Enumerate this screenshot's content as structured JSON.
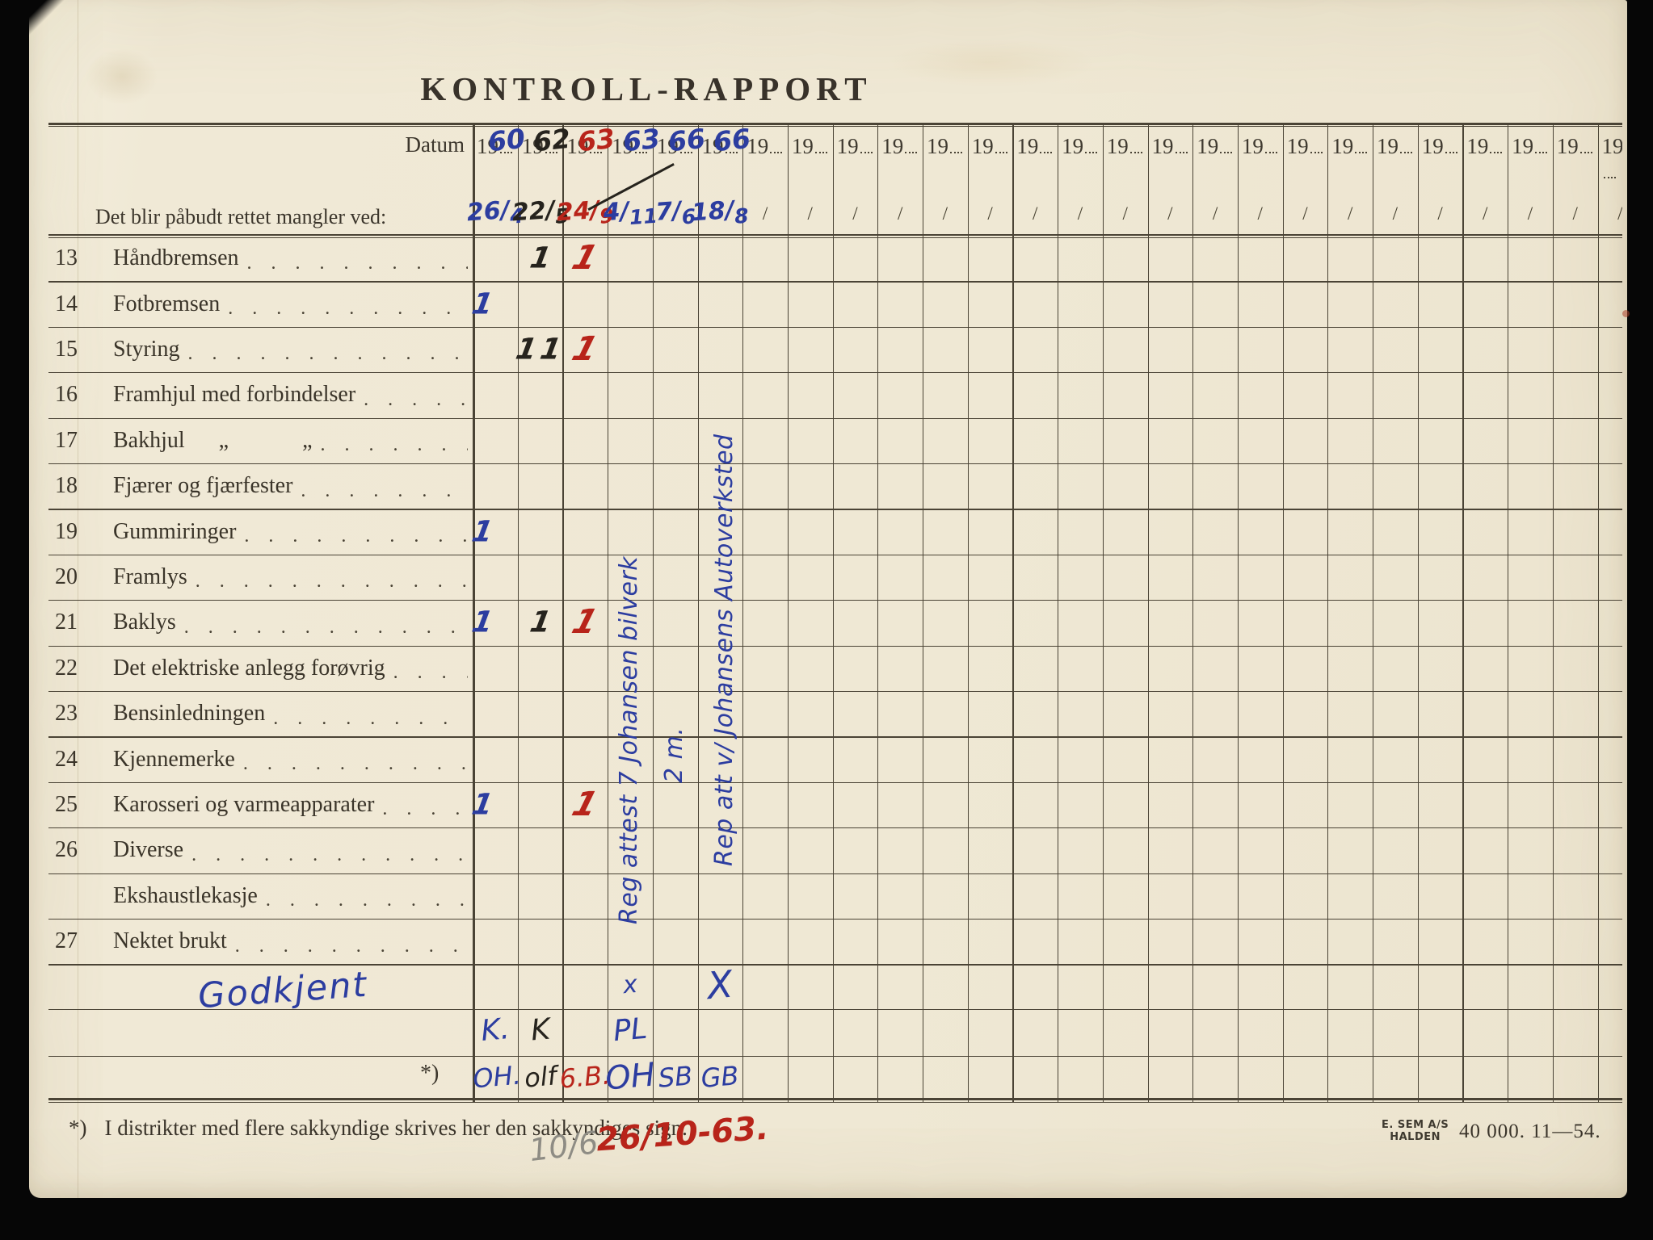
{
  "title": "KONTROLL-RAPPORT",
  "colors": {
    "blue": "#2c3da0",
    "black": "#26231d",
    "red": "#b8241a",
    "pencil": "#8e8c84",
    "print_ink": "#3c362c"
  },
  "header": {
    "datum_label": "Datum",
    "instruction": "Det blir påbudt rettet mangler ved:",
    "year_prefix": "19",
    "empty_mark": "/",
    "total_columns": 26,
    "filled_columns": [
      {
        "col": 1,
        "year": "60",
        "year_color": "blue",
        "date": "26/4",
        "date_color": "blue",
        "struck": false
      },
      {
        "col": 2,
        "year": "62",
        "year_color": "black",
        "date": "22/5",
        "date_color": "black",
        "struck": false
      },
      {
        "col": 3,
        "year": "63",
        "year_color": "red",
        "date": "24/9",
        "date_color": "red",
        "struck": true
      },
      {
        "col": 4,
        "year": "63",
        "year_color": "blue",
        "date": "4/11",
        "date_color": "blue",
        "struck": false
      },
      {
        "col": 5,
        "year": "66",
        "year_color": "blue",
        "date": "7/6",
        "date_color": "blue",
        "struck": false
      },
      {
        "col": 6,
        "year": "66",
        "year_color": "blue",
        "date": "18/8",
        "date_color": "blue",
        "struck": false
      }
    ]
  },
  "leader": ". . . . . . . . . . . . . . . . . . . .",
  "rows": [
    {
      "num": "13",
      "label": "Håndbremsen"
    },
    {
      "num": "14",
      "label": "Fotbremsen"
    },
    {
      "num": "15",
      "label": "Styring"
    },
    {
      "num": "16",
      "label": "Framhjul med forbindelser"
    },
    {
      "num": "17",
      "label": "Bakhjul      „             „"
    },
    {
      "num": "18",
      "label": "Fjærer og fjærfester"
    },
    {
      "num": "19",
      "label": "Gummiringer"
    },
    {
      "num": "20",
      "label": "Framlys"
    },
    {
      "num": "21",
      "label": "Baklys"
    },
    {
      "num": "22",
      "label": "Det elektriske anlegg forøvrig"
    },
    {
      "num": "23",
      "label": "Bensinledningen"
    },
    {
      "num": "24",
      "label": "Kjennemerke"
    },
    {
      "num": "25",
      "label": "Karosseri og varmeapparater"
    },
    {
      "num": "26",
      "label": "Diverse"
    },
    {
      "num": "",
      "label": "Ekshaustlekasje"
    },
    {
      "num": "27",
      "label": "Nektet brukt"
    }
  ],
  "tally_marks": [
    {
      "row": 0,
      "col": 2,
      "text": "1",
      "color": "black"
    },
    {
      "row": 0,
      "col": 3,
      "text": "1",
      "color": "red"
    },
    {
      "row": 1,
      "col": 1,
      "text": "1",
      "color": "blue"
    },
    {
      "row": 2,
      "col": 2,
      "text": "11",
      "color": "black"
    },
    {
      "row": 2,
      "col": 3,
      "text": "1",
      "color": "red"
    },
    {
      "row": 6,
      "col": 1,
      "text": "1",
      "color": "blue"
    },
    {
      "row": 8,
      "col": 1,
      "text": "1",
      "color": "blue"
    },
    {
      "row": 8,
      "col": 2,
      "text": "1",
      "color": "black"
    },
    {
      "row": 8,
      "col": 3,
      "text": "1",
      "color": "red"
    },
    {
      "row": 12,
      "col": 1,
      "text": "1",
      "color": "blue"
    },
    {
      "row": 12,
      "col": 3,
      "text": "1",
      "color": "red"
    }
  ],
  "vertical_notes": [
    {
      "id": "note-reg-attest",
      "col": 4,
      "text": "Reg attest 7 Johansen bilverk",
      "color": "blue"
    },
    {
      "id": "note-2m",
      "col": 5,
      "text": "2 m.",
      "color": "blue"
    },
    {
      "id": "note-rep-att",
      "col": 6,
      "text": "Rep att v/ Johansens Autoverksted",
      "color": "blue"
    }
  ],
  "approval": {
    "label": "Godkjent",
    "marks": [
      {
        "col": 4,
        "text": "x",
        "color": "blue",
        "size": "small"
      },
      {
        "col": 6,
        "text": "X",
        "color": "blue",
        "size": "large"
      }
    ]
  },
  "sign_row_1": [
    {
      "col": 1,
      "text": "K.",
      "color": "blue"
    },
    {
      "col": 2,
      "text": "K",
      "color": "black"
    },
    {
      "col": 4,
      "text": "PL",
      "color": "blue"
    }
  ],
  "sign_row_2": {
    "star_label": "*)",
    "signatures": [
      {
        "col": 1,
        "text": "OH.",
        "color": "blue"
      },
      {
        "col": 2,
        "text": "olf",
        "color": "black"
      },
      {
        "col": 3,
        "text": "6.B.",
        "color": "red"
      },
      {
        "col": 4,
        "text": "OH",
        "color": "blue"
      },
      {
        "col": 5,
        "text": "SB",
        "color": "blue"
      },
      {
        "col": 6,
        "text": "GB",
        "color": "blue"
      }
    ]
  },
  "footer": {
    "footnote_star": "*)",
    "footnote_text": "I distrikter med flere sakkyndige skrives her den sakkyndiges sign.",
    "handwritten_pencil": "10/6",
    "handwritten_red": "26/10-63.",
    "printer_line1": "E. SEM A/S",
    "printer_line2": "HALDEN",
    "print_info": "40 000.    11—54."
  }
}
